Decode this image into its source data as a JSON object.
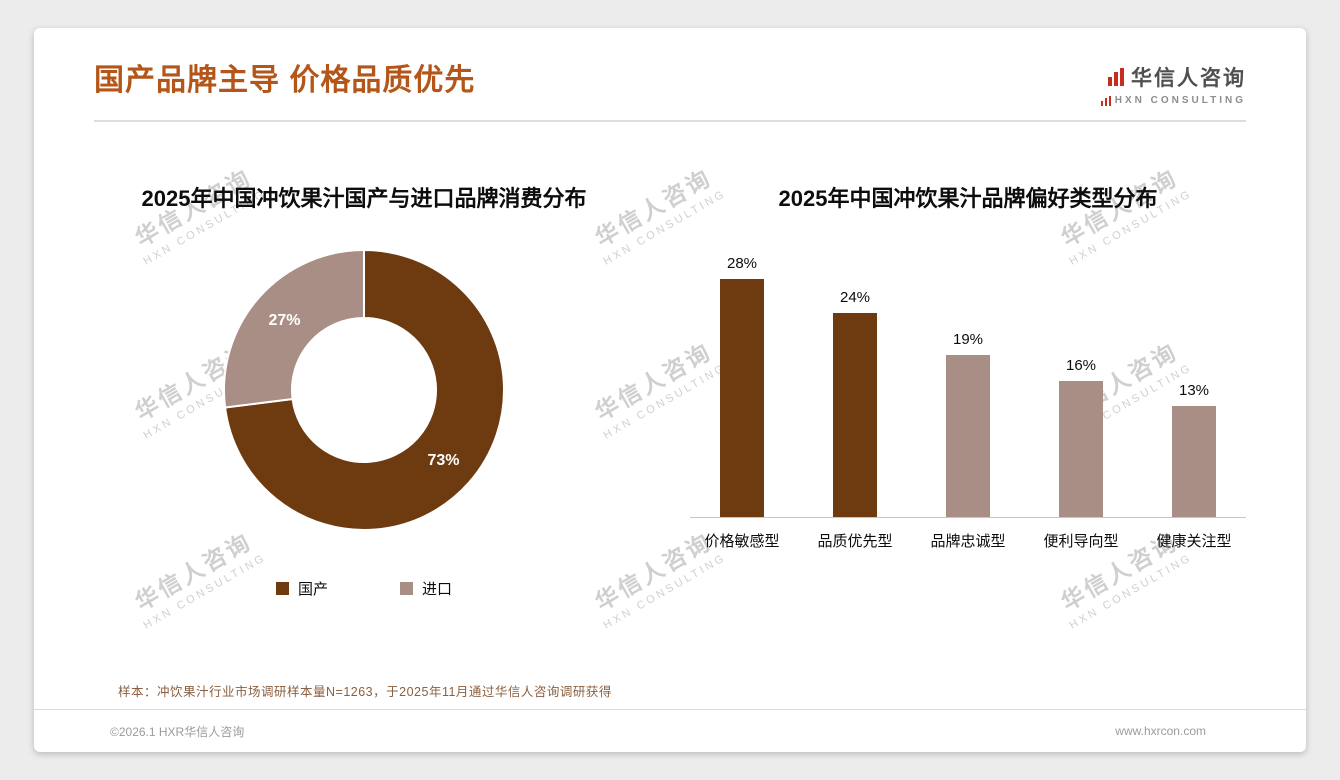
{
  "page": {
    "title": "国产品牌主导 价格品质优先",
    "footnote": "样本：冲饮果汁行业市场调研样本量N=1263，于2025年11月通过华信人咨询调研获得",
    "footer_left": "©2026.1 HXR华信人咨询",
    "footer_right": "www.hxrcon.com"
  },
  "brand": {
    "name": "华信人咨询",
    "subtitle": "HXN CONSULTING"
  },
  "watermark": {
    "line1": "华信人咨询",
    "line2": "HXN CONSULTING"
  },
  "colors": {
    "accent_title": "#B4561A",
    "dark_brown": "#6E3A10",
    "mauve": "#A98E85",
    "logo_red": "#C62D1F"
  },
  "chart_data": [
    {
      "type": "pie",
      "donut": true,
      "title": "2025年中国冲饮果汁国产与进口品牌消费分布",
      "labels": [
        "国产",
        "进口"
      ],
      "values": [
        73,
        27
      ],
      "value_labels": [
        "73%",
        "27%"
      ],
      "colors": [
        "#6E3A10",
        "#A98E85"
      ],
      "legend_position": "bottom"
    },
    {
      "type": "bar",
      "title": "2025年中国冲饮果汁品牌偏好类型分布",
      "categories": [
        "价格敏感型",
        "品质优先型",
        "品牌忠诚型",
        "便利导向型",
        "健康关注型"
      ],
      "values": [
        28,
        24,
        19,
        16,
        13
      ],
      "value_labels": [
        "28%",
        "24%",
        "19%",
        "16%",
        "13%"
      ],
      "colors": [
        "#6E3A10",
        "#6E3A10",
        "#A98E85",
        "#A98E85",
        "#A98E85"
      ],
      "ylim": [
        0,
        30
      ],
      "grid": false,
      "legend_position": "none"
    }
  ]
}
